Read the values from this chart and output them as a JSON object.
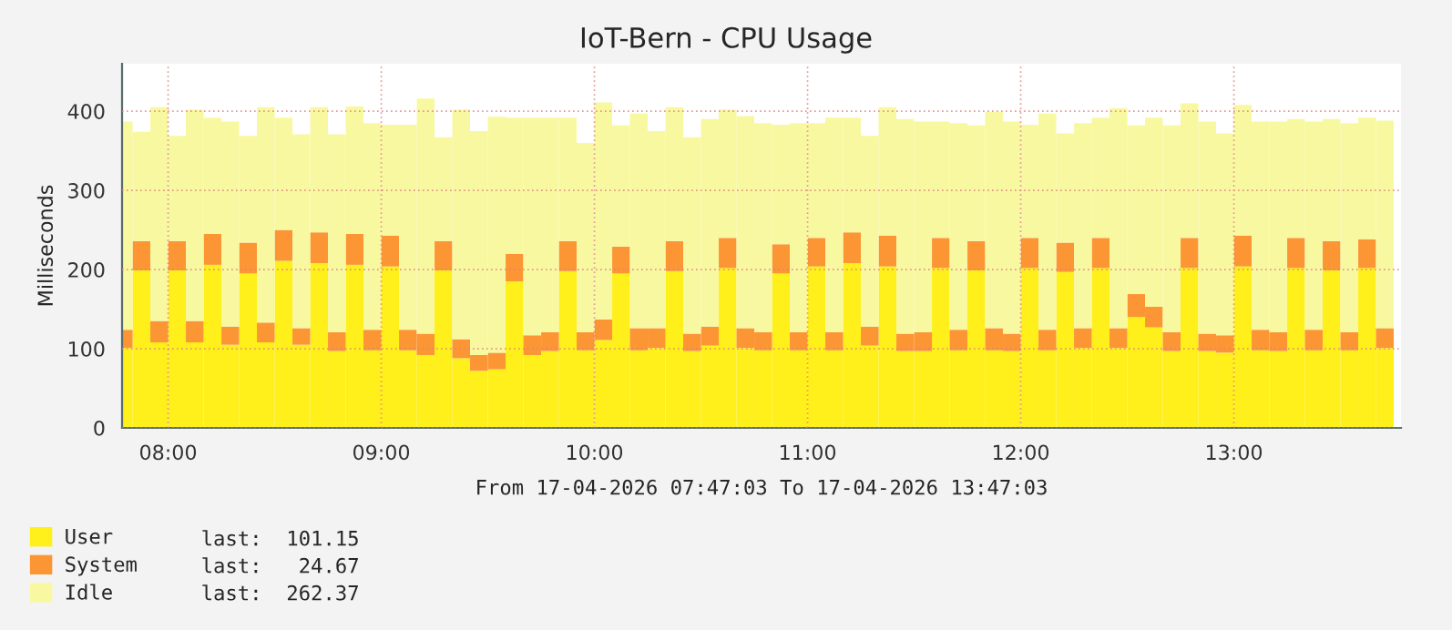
{
  "chart_data": {
    "type": "bar",
    "stacked": true,
    "title": "IoT-Bern - CPU Usage",
    "ylabel": "Milliseconds",
    "xlabel": "From 17-04-2026 07:47:03 To 17-04-2026 13:47:03",
    "x": [
      7.7917,
      7.875,
      7.9583,
      8.0417,
      8.125,
      8.2083,
      8.2917,
      8.375,
      8.4583,
      8.5417,
      8.625,
      8.7083,
      8.7917,
      8.875,
      8.9583,
      9.0417,
      9.125,
      9.2083,
      9.2917,
      9.375,
      9.4583,
      9.5417,
      9.625,
      9.7083,
      9.7917,
      9.875,
      9.9583,
      10.0417,
      10.125,
      10.2083,
      10.2917,
      10.375,
      10.4583,
      10.5417,
      10.625,
      10.7083,
      10.7917,
      10.875,
      10.9583,
      11.0417,
      11.125,
      11.2083,
      11.2917,
      11.375,
      11.4583,
      11.5417,
      11.625,
      11.7083,
      11.7917,
      11.875,
      11.9583,
      12.0417,
      12.125,
      12.2083,
      12.2917,
      12.375,
      12.4583,
      12.5417,
      12.625,
      12.7083,
      12.7917,
      12.875,
      12.9583,
      13.0417,
      13.125,
      13.2083,
      13.2917,
      13.375,
      13.4583,
      13.5417,
      13.625,
      13.7083
    ],
    "series": [
      {
        "name": "User",
        "color": "#ffef1a",
        "values": [
          101,
          199,
          108,
          199,
          108,
          206,
          105,
          195,
          108,
          211,
          105,
          208,
          97,
          206,
          98,
          204,
          98,
          92,
          199,
          88,
          72,
          74,
          185,
          92,
          97,
          198,
          98,
          111,
          195,
          98,
          101,
          198,
          97,
          104,
          202,
          101,
          98,
          195,
          98,
          204,
          98,
          208,
          104,
          204,
          97,
          97,
          202,
          98,
          199,
          98,
          97,
          202,
          98,
          197,
          101,
          202,
          101,
          140,
          127,
          97,
          202,
          97,
          95,
          204,
          98,
          97,
          202,
          98,
          199,
          98,
          202,
          101
        ]
      },
      {
        "name": "System",
        "color": "#fc9534",
        "values": [
          23,
          37,
          27,
          37,
          27,
          39,
          23,
          39,
          25,
          39,
          21,
          39,
          24,
          39,
          26,
          39,
          26,
          27,
          37,
          24,
          20,
          21,
          35,
          25,
          24,
          38,
          23,
          26,
          34,
          28,
          25,
          38,
          22,
          24,
          38,
          25,
          23,
          37,
          23,
          36,
          23,
          39,
          24,
          39,
          22,
          24,
          38,
          26,
          37,
          28,
          22,
          38,
          26,
          37,
          25,
          38,
          25,
          29,
          26,
          24,
          38,
          22,
          22,
          39,
          26,
          24,
          38,
          26,
          37,
          23,
          36,
          25
        ]
      },
      {
        "name": "Idle",
        "color": "#f8f8a0",
        "values": [
          263,
          138,
          270,
          133,
          267,
          147,
          259,
          135,
          272,
          142,
          245,
          158,
          250,
          161,
          261,
          140,
          259,
          297,
          131,
          290,
          283,
          298,
          172,
          275,
          271,
          156,
          239,
          274,
          153,
          271,
          249,
          169,
          248,
          262,
          162,
          268,
          264,
          151,
          264,
          145,
          271,
          145,
          241,
          162,
          271,
          266,
          147,
          261,
          146,
          273,
          268,
          143,
          273,
          138,
          259,
          152,
          278,
          213,
          239,
          261,
          170,
          268,
          255,
          165,
          263,
          266,
          150,
          263,
          154,
          264,
          154,
          262
        ]
      }
    ],
    "annotations": [
      "last:  101.15",
      "last:   24.67",
      "last:  262.37"
    ],
    "xlim": [
      7.784,
      13.784
    ],
    "xticks": [
      {
        "value": 8,
        "label": "08:00"
      },
      {
        "value": 9,
        "label": "09:00"
      },
      {
        "value": 10,
        "label": "10:00"
      },
      {
        "value": 11,
        "label": "11:00"
      },
      {
        "value": 12,
        "label": "12:00"
      },
      {
        "value": 13,
        "label": "13:00"
      }
    ],
    "ylim": [
      0,
      460
    ],
    "yticks": [
      0,
      100,
      200,
      300,
      400
    ],
    "grid": true,
    "legend": "bottom left"
  }
}
